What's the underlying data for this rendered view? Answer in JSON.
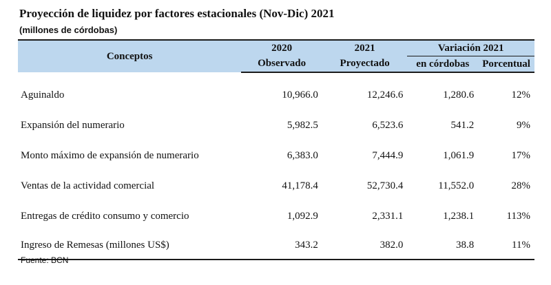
{
  "title": "Proyección de liquidez por factores estacionales (Nov-Dic) 2021",
  "subtitle": "(millones de córdobas)",
  "header": {
    "conceptos": "Conceptos",
    "col_2020": "2020",
    "col_2020_sub": "Observado",
    "col_2021": "2021",
    "col_2021_sub": "Proyectado",
    "variacion": "Variación 2021",
    "var_cordobas": "en córdobas",
    "var_porcentual": "Porcentual"
  },
  "rows": [
    {
      "label": "Aguinaldo",
      "v2020": "10,966.0",
      "v2021": "12,246.6",
      "var": "1,280.6",
      "pct": "12%"
    },
    {
      "label": "Expansión del numerario",
      "v2020": "5,982.5",
      "v2021": "6,523.6",
      "var": "541.2",
      "pct": "9%"
    },
    {
      "label": "Monto máximo de expansión de numerario",
      "v2020": "6,383.0",
      "v2021": "7,444.9",
      "var": "1,061.9",
      "pct": "17%"
    },
    {
      "label": "Ventas de la actividad comercial",
      "v2020": "41,178.4",
      "v2021": "52,730.4",
      "var": "11,552.0",
      "pct": "28%"
    },
    {
      "label": "Entregas de crédito consumo y comercio",
      "v2020": "1,092.9",
      "v2021": "2,331.1",
      "var": "1,238.1",
      "pct": "113%"
    },
    {
      "label": "Ingreso de Remesas (millones US$)",
      "v2020": "343.2",
      "v2021": "382.0",
      "var": "38.8",
      "pct": "11%"
    }
  ],
  "source": "Fuente: BCN",
  "colors": {
    "header_bg": "#bdd7ee",
    "rule": "#1a1a1a"
  }
}
